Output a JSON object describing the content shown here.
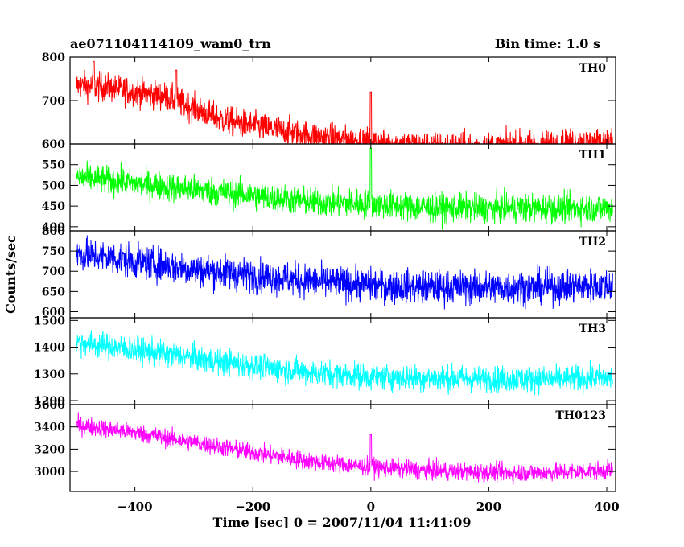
{
  "header": {
    "title": "ae071104114109_wam0_trn",
    "bin_time": "Bin time: 1.0 s"
  },
  "chart_data": {
    "type": "line",
    "xlabel": "Time [sec] 0 = 2007/11/04 11:41:09",
    "ylabel": "Counts/sec",
    "xlim": [
      -510,
      415
    ],
    "x_ticks": [
      -400,
      -200,
      0,
      200,
      400
    ],
    "x_tick_labels": [
      "−400",
      "−200",
      "0",
      "200",
      "400"
    ],
    "x_range": [
      -500,
      410
    ],
    "panels": [
      {
        "name": "TH0",
        "color": "#ff0000",
        "ylim": [
          600,
          800
        ],
        "y_ticks": [
          600,
          700,
          800
        ],
        "y_tick_labels": [
          "600",
          "700",
          "800"
        ],
        "trend": [
          [
            -500,
            735
          ],
          [
            -450,
            730
          ],
          [
            -350,
            710
          ],
          [
            -250,
            655
          ],
          [
            -150,
            630
          ],
          [
            -50,
            610
          ],
          [
            0,
            605
          ],
          [
            100,
            595
          ],
          [
            200,
            595
          ],
          [
            300,
            600
          ],
          [
            410,
            605
          ]
        ],
        "noise": 30,
        "spikes": [
          [
            0,
            720
          ],
          [
            -470,
            790
          ],
          [
            -330,
            770
          ]
        ]
      },
      {
        "name": "TH1",
        "color": "#00ff00",
        "ylim": [
          390,
          600
        ],
        "y_ticks": [
          400,
          450,
          500,
          550
        ],
        "y_tick_labels": [
          "400",
          "450",
          "500",
          "550"
        ],
        "trend": [
          [
            -500,
            520
          ],
          [
            -400,
            505
          ],
          [
            -300,
            490
          ],
          [
            -200,
            475
          ],
          [
            -100,
            460
          ],
          [
            0,
            455
          ],
          [
            100,
            445
          ],
          [
            200,
            445
          ],
          [
            300,
            445
          ],
          [
            410,
            445
          ]
        ],
        "noise": 32,
        "spikes": [
          [
            0,
            590
          ]
        ]
      },
      {
        "name": "TH2",
        "color": "#0000ff",
        "ylim": [
          585,
          800
        ],
        "y_ticks": [
          600,
          650,
          700,
          750,
          800
        ],
        "y_tick_labels": [
          "600",
          "650",
          "700",
          "750",
          "800"
        ],
        "trend": [
          [
            -500,
            745
          ],
          [
            -400,
            725
          ],
          [
            -300,
            705
          ],
          [
            -200,
            690
          ],
          [
            -100,
            675
          ],
          [
            0,
            665
          ],
          [
            100,
            660
          ],
          [
            200,
            660
          ],
          [
            300,
            662
          ],
          [
            410,
            665
          ]
        ],
        "noise": 38,
        "spikes": []
      },
      {
        "name": "TH3",
        "color": "#00ffff",
        "ylim": [
          1185,
          1510
        ],
        "y_ticks": [
          1200,
          1300,
          1400,
          1500
        ],
        "y_tick_labels": [
          "1200",
          "1300",
          "1400",
          "1500"
        ],
        "trend": [
          [
            -500,
            1420
          ],
          [
            -400,
            1390
          ],
          [
            -300,
            1360
          ],
          [
            -200,
            1330
          ],
          [
            -100,
            1305
          ],
          [
            0,
            1290
          ],
          [
            100,
            1285
          ],
          [
            200,
            1280
          ],
          [
            300,
            1280
          ],
          [
            410,
            1285
          ]
        ],
        "noise": 45,
        "spikes": []
      },
      {
        "name": "TH0123",
        "color": "#ff00ff",
        "ylim": [
          2820,
          3600
        ],
        "y_ticks": [
          3000,
          3200,
          3400,
          3600
        ],
        "y_tick_labels": [
          "3000",
          "3200",
          "3400",
          "3600"
        ],
        "trend": [
          [
            -500,
            3420
          ],
          [
            -400,
            3350
          ],
          [
            -300,
            3260
          ],
          [
            -200,
            3170
          ],
          [
            -100,
            3090
          ],
          [
            0,
            3040
          ],
          [
            100,
            3010
          ],
          [
            200,
            2990
          ],
          [
            300,
            2990
          ],
          [
            410,
            3010
          ]
        ],
        "noise": 75,
        "spikes": [
          [
            0,
            3330
          ]
        ]
      }
    ]
  }
}
